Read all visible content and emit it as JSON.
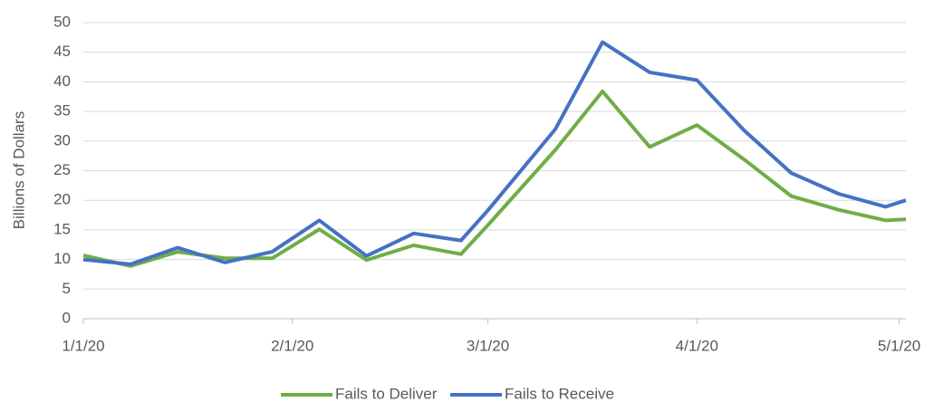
{
  "chart_data": {
    "type": "line",
    "y_label": "Billions of Dollars",
    "x": [
      0,
      7,
      14,
      21,
      28,
      35,
      42,
      49,
      56,
      60,
      70,
      77,
      84,
      91,
      98,
      105,
      112,
      119,
      122
    ],
    "xlim": [
      0,
      122
    ],
    "xticks": [
      {
        "value": 0,
        "label": "1/1/20"
      },
      {
        "value": 31,
        "label": "2/1/20"
      },
      {
        "value": 60,
        "label": "3/1/20"
      },
      {
        "value": 91,
        "label": "4/1/20"
      },
      {
        "value": 121,
        "label": "5/1/20"
      }
    ],
    "ylim": [
      0,
      50
    ],
    "yticks": [
      0,
      5,
      10,
      15,
      20,
      25,
      30,
      35,
      40,
      45,
      50
    ],
    "grid": true,
    "legend": "bottom",
    "series": [
      {
        "name": "Fails to Deliver",
        "color": "#70ad47",
        "values": [
          10.7,
          8.9,
          11.3,
          10.2,
          10.2,
          15.1,
          9.9,
          12.4,
          10.9,
          15.8,
          28.5,
          38.4,
          29.0,
          32.7,
          26.9,
          20.7,
          18.4,
          16.6,
          16.8
        ]
      },
      {
        "name": "Fails to Receive",
        "color": "#4472c4",
        "values": [
          10.0,
          9.2,
          12.0,
          9.5,
          11.3,
          16.6,
          10.6,
          14.4,
          13.2,
          18.3,
          32.0,
          46.7,
          41.6,
          40.3,
          31.8,
          24.6,
          21.1,
          18.9,
          20.0
        ]
      }
    ]
  }
}
